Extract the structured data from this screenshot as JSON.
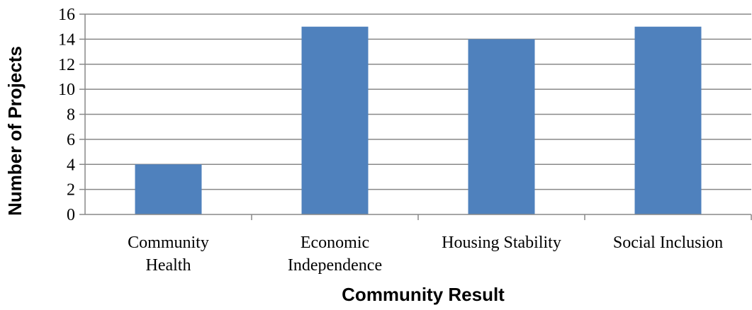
{
  "chart_data": {
    "type": "bar",
    "categories": [
      [
        "Community",
        "Health"
      ],
      [
        "Economic",
        "Independence"
      ],
      [
        "Housing Stability"
      ],
      [
        "Social Inclusion"
      ]
    ],
    "values": [
      4,
      15,
      14,
      15
    ],
    "xlabel": "Community Result",
    "ylabel": "Number of Projects",
    "ylim": [
      0,
      16
    ],
    "yticks": [
      0,
      2,
      4,
      6,
      8,
      10,
      12,
      14,
      16
    ],
    "grid": true,
    "legend": "none",
    "colors": {
      "bar": "#4F81BD",
      "grid": "#888888",
      "axis": "#888888"
    }
  }
}
